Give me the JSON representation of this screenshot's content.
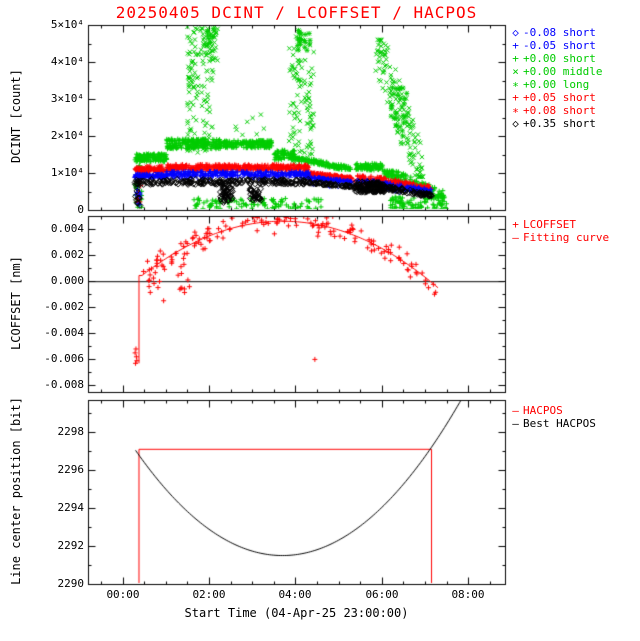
{
  "title": "20250405 DCINT / LCOFFSET / HACPOS",
  "title_color": "#ff0000",
  "colors": {
    "blue": "#0000ff",
    "green": "#00cc00",
    "red": "#ff0000",
    "black": "#000000"
  },
  "x_axis": {
    "label": "Start Time (04-Apr-25 23:00:00)",
    "min": -0.8,
    "max": 8.85,
    "minor_step": 0.5,
    "ticks": [
      {
        "v": 0,
        "label": "00:00"
      },
      {
        "v": 2,
        "label": "02:00"
      },
      {
        "v": 4,
        "label": "04:00"
      },
      {
        "v": 6,
        "label": "06:00"
      },
      {
        "v": 8,
        "label": "08:00"
      }
    ]
  },
  "chart_data": [
    {
      "type": "scatter",
      "ylabel": "DCINT [count]",
      "ylim": [
        0,
        50000
      ],
      "yminor": 5000,
      "yticks": [
        {
          "v": 0,
          "label": "0"
        },
        {
          "v": 10000,
          "label": "1×10⁴"
        },
        {
          "v": 20000,
          "label": "2×10⁴"
        },
        {
          "v": 30000,
          "label": "3×10⁴"
        },
        {
          "v": 40000,
          "label": "4×10⁴"
        },
        {
          "v": 50000,
          "label": "5×10⁴"
        }
      ],
      "legend": [
        {
          "marker": "diamond",
          "color": "#0000ff",
          "label": "-0.08 short"
        },
        {
          "marker": "plus",
          "color": "#0000ff",
          "label": "-0.05 short"
        },
        {
          "marker": "plus",
          "color": "#00cc00",
          "label": "+0.00 short"
        },
        {
          "marker": "cross",
          "color": "#00cc00",
          "label": "+0.00 middle"
        },
        {
          "marker": "asterisk",
          "color": "#00cc00",
          "label": "+0.00 long"
        },
        {
          "marker": "plus",
          "color": "#ff0000",
          "label": "+0.05 short"
        },
        {
          "marker": "asterisk",
          "color": "#ff0000",
          "label": "+0.08 short"
        },
        {
          "marker": "diamond",
          "color": "#000000",
          "label": "+0.35 short"
        }
      ],
      "series": [
        {
          "label": "+0.00 middle",
          "marker": "cross",
          "color": "#00cc00",
          "clusters": [
            [
              1.5,
              1.75,
              15000,
              49500,
              70,
              0
            ],
            [
              1.8,
              2.1,
              15000,
              49500,
              60,
              0
            ],
            [
              2.0,
              2.2,
              40000,
              50000,
              18,
              0
            ],
            [
              3.85,
              4.15,
              12000,
              47000,
              60,
              0
            ],
            [
              4.2,
              4.45,
              13000,
              46000,
              45,
              0
            ],
            [
              5.85,
              6.95,
              9000,
              46000,
              150,
              1
            ],
            [
              2.6,
              3.3,
              20000,
              26000,
              8,
              0
            ]
          ]
        },
        {
          "label": "+0.00 long",
          "marker": "asterisk",
          "color": "#00cc00",
          "clusters": [
            [
              4.05,
              4.35,
              43000,
              49000,
              22,
              0
            ],
            [
              6.15,
              6.6,
              20000,
              34000,
              25,
              0
            ],
            [
              1.95,
              2.15,
              44000,
              49500,
              12,
              0
            ]
          ]
        },
        {
          "label": "+0.00 short",
          "marker": "plus",
          "color": "#00cc00",
          "clusters": [
            [
              0.28,
              0.45,
              500,
              14000,
              35,
              0
            ],
            [
              0.3,
              1.02,
              13000,
              15200,
              130,
              0
            ],
            [
              1.02,
              2.3,
              16500,
              19200,
              220,
              0
            ],
            [
              2.3,
              3.45,
              16800,
              18800,
              180,
              0
            ],
            [
              3.5,
              4.0,
              13500,
              16200,
              70,
              0
            ],
            [
              4.0,
              5.3,
              11000,
              14000,
              150,
              1
            ],
            [
              5.4,
              6.05,
              10800,
              12600,
              90,
              0
            ],
            [
              6.05,
              7.45,
              3500,
              10500,
              170,
              1
            ],
            [
              1.6,
              4.6,
              200,
              3200,
              110,
              0
            ],
            [
              6.2,
              7.5,
              200,
              3600,
              90,
              0
            ]
          ]
        },
        {
          "label": "+0.05 short",
          "marker": "plus",
          "color": "#ff0000",
          "clusters": [
            [
              0.3,
              0.42,
              1000,
              11000,
              12,
              0
            ],
            [
              0.28,
              1.02,
              10300,
              11400,
              100,
              0
            ],
            [
              1.02,
              4.3,
              10800,
              12300,
              300,
              0
            ],
            [
              4.3,
              5.3,
              8600,
              10000,
              90,
              1
            ],
            [
              5.4,
              7.15,
              5800,
              9200,
              140,
              1
            ]
          ]
        },
        {
          "label": "+0.08 short",
          "marker": "asterisk",
          "color": "#ff0000",
          "clusters": [
            [
              0.35,
              4.3,
              10600,
              11900,
              70,
              0
            ],
            [
              4.3,
              7.15,
              5600,
              9600,
              50,
              1
            ]
          ]
        },
        {
          "label": "-0.05 short",
          "marker": "plus",
          "color": "#0000ff",
          "clusters": [
            [
              0.3,
              0.42,
              1000,
              9000,
              10,
              0
            ],
            [
              0.28,
              1.02,
              8700,
              9700,
              90,
              0
            ],
            [
              1.02,
              4.3,
              9100,
              10400,
              250,
              0
            ],
            [
              4.3,
              5.3,
              7600,
              8800,
              80,
              1
            ],
            [
              5.4,
              7.15,
              4900,
              7900,
              120,
              1
            ]
          ]
        },
        {
          "label": "-0.08 short",
          "marker": "diamond",
          "color": "#0000ff",
          "clusters": [
            [
              0.35,
              4.3,
              8500,
              9700,
              60,
              0
            ],
            [
              4.3,
              7.15,
              4800,
              7700,
              40,
              1
            ]
          ]
        },
        {
          "label": "+0.35 short",
          "marker": "diamond",
          "color": "#000000",
          "clusters": [
            [
              0.3,
              0.42,
              1000,
              8000,
              10,
              0
            ],
            [
              0.28,
              4.3,
              6900,
              8300,
              210,
              0
            ],
            [
              2.25,
              2.55,
              2000,
              6000,
              45,
              0
            ],
            [
              2.95,
              3.2,
              2500,
              6000,
              35,
              0
            ],
            [
              4.3,
              5.3,
              6300,
              7500,
              60,
              1
            ],
            [
              5.35,
              6.05,
              4800,
              7600,
              140,
              0
            ],
            [
              6.05,
              7.15,
              3800,
              6200,
              80,
              1
            ]
          ]
        }
      ]
    },
    {
      "type": "scatter+fit",
      "ylabel": "LCOFFSET [nm]",
      "ylim": [
        -0.0085,
        0.005
      ],
      "yminor": 0.001,
      "yticks": [
        {
          "v": 0.004,
          "label": "0.004"
        },
        {
          "v": 0.002,
          "label": "0.002"
        },
        {
          "v": 0.0,
          "label": "0.000"
        },
        {
          "v": -0.002,
          "label": "-0.002"
        },
        {
          "v": -0.004,
          "label": "-0.004"
        },
        {
          "v": -0.006,
          "label": "-0.006"
        },
        {
          "v": -0.008,
          "label": "-0.008"
        }
      ],
      "legend": [
        {
          "marker": "plus",
          "color": "#ff0000",
          "label": "LCOFFSET"
        },
        {
          "marker": "line",
          "color": "#ff0000",
          "label": "Fitting curve"
        }
      ],
      "zero_line": 0.0,
      "fit": {
        "peak_x": 3.7,
        "peak_y": 0.0046,
        "a": 0.000394,
        "x_start": 0.45,
        "x_end": 7.3,
        "jump_x": 0.38,
        "jump_bottom": -0.0063
      },
      "scatter": {
        "x_start": 0.45,
        "x_end": 7.25,
        "n": 155,
        "sigma": 0.0006
      },
      "extra_clusters": [
        [
          0.5,
          1.6,
          -0.0012,
          0.0022,
          28
        ]
      ],
      "pre_jump_points": [
        [
          0.29,
          -0.0055
        ],
        [
          0.3,
          -0.0063
        ],
        [
          0.32,
          -0.0058
        ],
        [
          0.33,
          -0.0061
        ],
        [
          0.31,
          -0.0052
        ]
      ],
      "outliers": [
        [
          0.95,
          -0.0015
        ],
        [
          4.45,
          -0.006
        ]
      ]
    },
    {
      "type": "line",
      "ylabel": "Line center position [bit]",
      "ylim": [
        2290,
        2299.7
      ],
      "yminor": 1,
      "yticks": [
        {
          "v": 2290,
          "label": "2290"
        },
        {
          "v": 2292,
          "label": "2292"
        },
        {
          "v": 2294,
          "label": "2294"
        },
        {
          "v": 2296,
          "label": "2296"
        },
        {
          "v": 2298,
          "label": "2298"
        }
      ],
      "legend": [
        {
          "marker": "line",
          "color": "#ff0000",
          "label": "HACPOS"
        },
        {
          "marker": "line",
          "color": "#000000",
          "label": "Best HACPOS"
        }
      ],
      "hacpos_value": 2297.1,
      "hacpos_points": [
        [
          0.38,
          2290
        ],
        [
          0.38,
          2297.1
        ],
        [
          7.15,
          2297.1
        ],
        [
          7.15,
          2290
        ]
      ],
      "best_curve": {
        "min_x": 3.7,
        "min_y": 2291.5,
        "coeff": 0.48,
        "x_start": 0.3,
        "x_end": 8.3
      }
    }
  ]
}
